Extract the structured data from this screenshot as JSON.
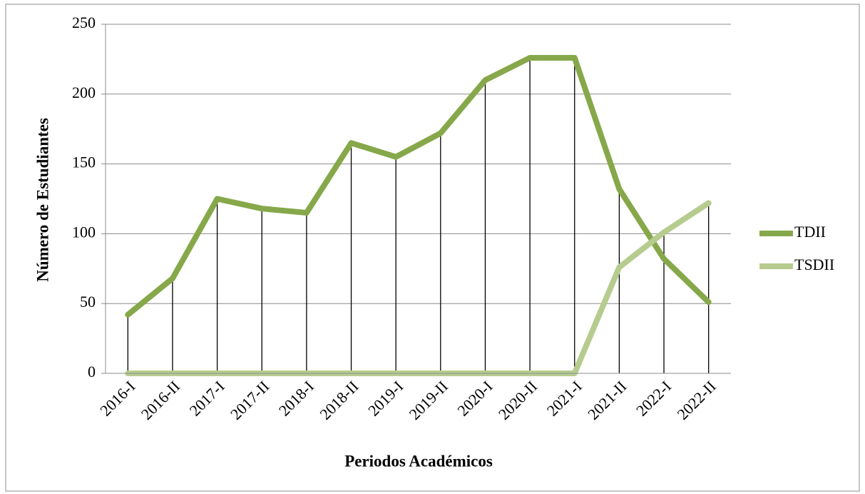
{
  "chart_data": {
    "type": "line",
    "xlabel": "Periodos Académicos",
    "ylabel": "Número de Estudiantes",
    "categories": [
      "2016-I",
      "2016-II",
      "2017-I",
      "2017-II",
      "2018-I",
      "2018-II",
      "2019-I",
      "2019-II",
      "2020-I",
      "2020-II",
      "2021-I",
      "2021-II",
      "2022-I",
      "2022-II"
    ],
    "series": [
      {
        "name": "TDII",
        "color": "#86a84a",
        "values": [
          42,
          68,
          125,
          118,
          115,
          165,
          155,
          172,
          210,
          226,
          226,
          132,
          82,
          51
        ]
      },
      {
        "name": "TSDII",
        "color": "#b6cc8f",
        "values": [
          0,
          0,
          0,
          0,
          0,
          0,
          0,
          0,
          0,
          0,
          0,
          76,
          101,
          122
        ]
      }
    ],
    "ylim": [
      0,
      250
    ],
    "yticks": [
      0,
      50,
      100,
      150,
      200,
      250
    ],
    "grid": true,
    "drop_lines": true,
    "legend": "right"
  }
}
